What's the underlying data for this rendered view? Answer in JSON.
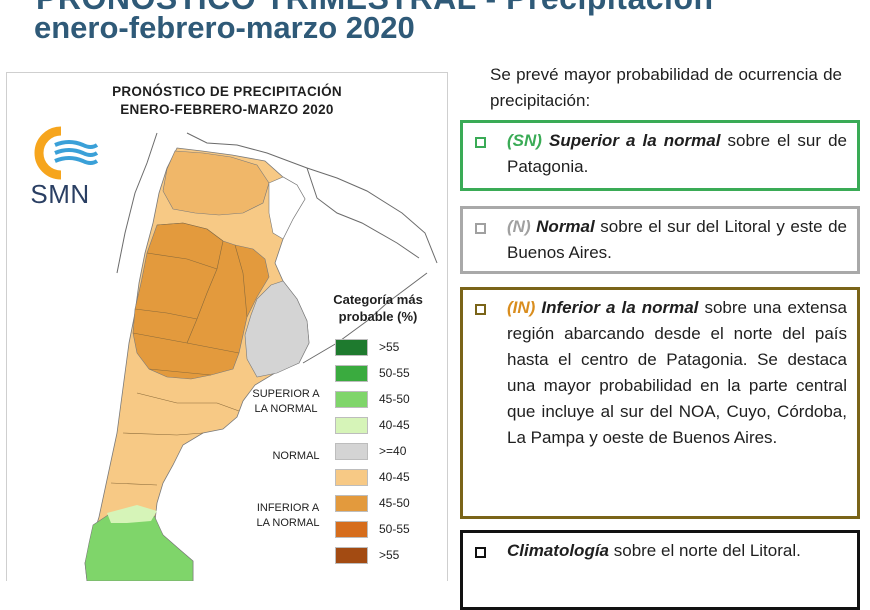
{
  "header": {
    "title_line1": "PRONÓSTICO TRIMESTRAL - Precipitación",
    "title_line2": "enero-febrero-marzo 2020"
  },
  "map": {
    "title_line1": "PRONÓSTICO DE PRECIPITACIÓN",
    "title_line2": "ENERO-FEBRERO-MARZO 2020",
    "logo_text": "SMN",
    "legend_title_line1": "Categoría más",
    "legend_title_line2": "probable (%)",
    "legend": [
      {
        "label": ">55",
        "color": "#1e7a2e"
      },
      {
        "label": "50-55",
        "color": "#3aab3f"
      },
      {
        "label": "45-50",
        "color": "#7fd56a"
      },
      {
        "label": "40-45",
        "color": "#d6f4b8"
      },
      {
        "label": ">=40",
        "color": "#d4d4d4"
      },
      {
        "label": "40-45",
        "color": "#f7c985"
      },
      {
        "label": "45-50",
        "color": "#e39a3d"
      },
      {
        "label": "50-55",
        "color": "#d66d1c"
      },
      {
        "label": ">55",
        "color": "#a34b12"
      }
    ],
    "groups": {
      "superior_line1": "SUPERIOR A",
      "superior_line2": "LA NORMAL",
      "normal": "NORMAL",
      "inferior_line1": "INFERIOR A",
      "inferior_line2": "LA NORMAL"
    }
  },
  "intro": "Se prevé mayor probabilidad de ocurrencia de precipitación:",
  "boxes": {
    "sn": {
      "code": "(SN)",
      "strong": "Superior a la normal",
      "rest": " sobre el sur de Patagonia."
    },
    "n": {
      "code": "(N)",
      "strong": "Normal",
      "rest": " sobre el sur del Litoral y este de Buenos Aires."
    },
    "in": {
      "code": "(IN)",
      "strong": "Inferior a la normal",
      "rest": " sobre una extensa región abarcando desde el norte del país hasta el centro de Patagonia. Se destaca una mayor probabilidad en la parte central que incluye al sur del NOA, Cuyo, Córdoba, La Pampa y oeste de Buenos Aires."
    },
    "cl": {
      "strong": "Climatología",
      "rest": " sobre el norte del Litoral."
    }
  }
}
